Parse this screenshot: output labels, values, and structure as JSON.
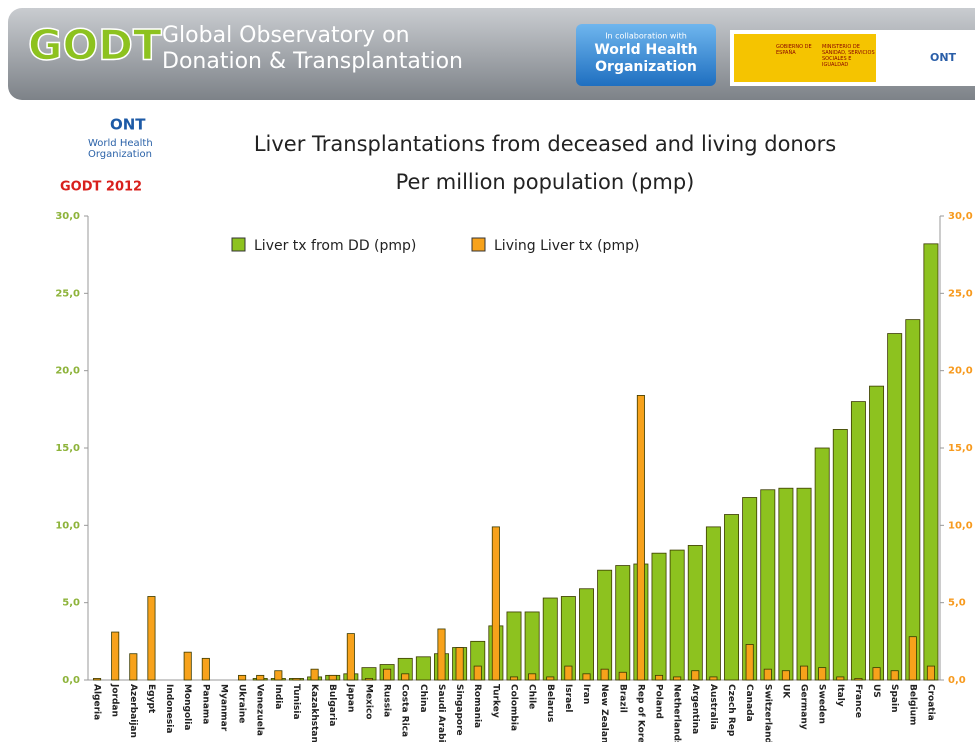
{
  "header": {
    "logo": "GODT",
    "line1": "Global Observatory on",
    "line2": "Donation & Transplantation",
    "collab": "In collaboration with",
    "who": "World Health Organization",
    "gov": "GOBIERNO DE ESPAÑA",
    "ministry": "MINISTERIO DE SANIDAD, SERVICIOS SOCIALES E IGUALDAD",
    "ont": "ONT"
  },
  "side": {
    "ont": "ONT",
    "who": "World Health Organization",
    "godt": "GODT 2012"
  },
  "chart_data": {
    "type": "bar",
    "title": "Liver Transplantations from deceased and living donors",
    "subtitle": "Per million population (pmp)",
    "categories": [
      "Algeria",
      "Jordan",
      "Azerbaijan",
      "Egypt",
      "Indonesia",
      "Mongolia",
      "Panama",
      "Myanmar",
      "Ukraine",
      "Venezuela",
      "India",
      "Tunisia",
      "Kazakhstan",
      "Bulgaria",
      "Japan",
      "Mexico",
      "Russia",
      "Costa Rica",
      "China",
      "Saudi Arabia",
      "Singapore",
      "Romania",
      "Turkey",
      "Colombia",
      "Chile",
      "Belarus",
      "Israel",
      "Iran",
      "New Zealand",
      "Brazil",
      "Rep of Korea",
      "Poland",
      "Netherlands",
      "Argentina",
      "Australia",
      "Czech Rep",
      "Canada",
      "Switzerland",
      "UK",
      "Germany",
      "Sweden",
      "Italy",
      "France",
      "US",
      "Spain",
      "Belgium",
      "Croatia"
    ],
    "series": [
      {
        "name": "Liver tx from DD (pmp)",
        "color": "#8dc21f",
        "values": [
          0,
          0,
          0,
          0,
          0,
          0,
          0,
          0,
          0,
          0.1,
          0.1,
          0.1,
          0.2,
          0.3,
          0.4,
          0.8,
          1.0,
          1.4,
          1.5,
          1.7,
          2.1,
          2.5,
          3.5,
          4.4,
          4.4,
          5.3,
          5.4,
          5.9,
          7.1,
          7.4,
          7.5,
          8.2,
          8.4,
          8.7,
          9.9,
          10.7,
          11.8,
          12.3,
          12.4,
          12.4,
          15.0,
          16.2,
          18.0,
          19.0,
          22.4,
          23.3,
          28.2
        ]
      },
      {
        "name": "Living Liver tx  (pmp)",
        "color": "#f7a21b",
        "axis": "y2",
        "values": [
          0.1,
          3.1,
          1.7,
          5.4,
          0,
          1.8,
          1.4,
          0,
          0.3,
          0.3,
          0.6,
          0.1,
          0.7,
          0.3,
          3.0,
          0.1,
          0.7,
          0.4,
          0,
          3.3,
          2.1,
          0.9,
          9.9,
          0.2,
          0.4,
          0.2,
          0.9,
          0.4,
          0.7,
          0.5,
          18.4,
          0.3,
          0.2,
          0.6,
          0.2,
          0,
          2.3,
          0.7,
          0.6,
          0.9,
          0.8,
          0.2,
          0.1,
          0.8,
          0.6,
          2.8,
          0.9
        ]
      }
    ],
    "ylim": [
      0,
      30
    ],
    "yticks": [
      {
        "value": 0,
        "label": "0,0"
      },
      {
        "value": 5,
        "label": "5,0"
      },
      {
        "value": 10,
        "label": "10,0"
      },
      {
        "value": 15,
        "label": "15,0"
      },
      {
        "value": 20,
        "label": "20,0"
      },
      {
        "value": 25,
        "label": "25,0"
      },
      {
        "value": 30,
        "label": "30,0"
      }
    ],
    "y2lim": [
      0,
      30
    ],
    "y2ticks": [
      {
        "value": 0,
        "label": "0,0"
      },
      {
        "value": 5,
        "label": "5,0"
      },
      {
        "value": 10,
        "label": "10,0"
      },
      {
        "value": 15,
        "label": "15,0"
      },
      {
        "value": 20,
        "label": "20,0"
      },
      {
        "value": 25,
        "label": "25,0"
      },
      {
        "value": 30,
        "label": "30,0"
      }
    ],
    "grid": false,
    "legend": "top"
  }
}
